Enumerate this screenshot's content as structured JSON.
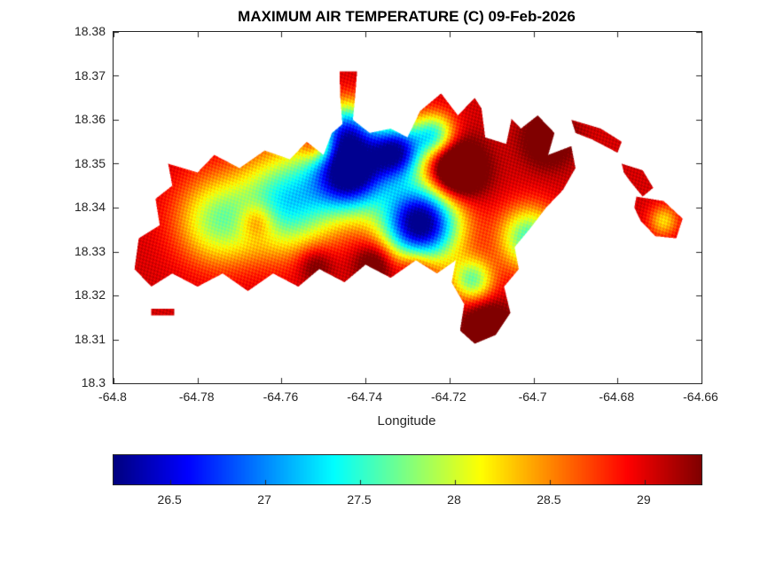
{
  "chart_data": {
    "type": "heatmap",
    "title": "MAXIMUM AIR TEMPERATURE (C) 09-Feb-2026",
    "xlabel": "Longitude",
    "ylabel": "",
    "xlim": [
      -64.8,
      -64.66
    ],
    "ylim": [
      18.3,
      18.38
    ],
    "x_ticks": [
      -64.8,
      -64.78,
      -64.76,
      -64.74,
      -64.72,
      -64.7,
      -64.68,
      -64.66
    ],
    "x_tick_labels": [
      "-64.8",
      "-64.78",
      "-64.76",
      "-64.74",
      "-64.72",
      "-64.7",
      "-64.68",
      "-64.66"
    ],
    "y_ticks": [
      18.3,
      18.31,
      18.32,
      18.33,
      18.34,
      18.35,
      18.36,
      18.37,
      18.38
    ],
    "y_tick_labels": [
      "18.3",
      "18.31",
      "18.32",
      "18.33",
      "18.34",
      "18.35",
      "18.36",
      "18.37",
      "18.38"
    ],
    "grid": false,
    "colormap": "jet",
    "value_range": [
      26.2,
      29.3
    ],
    "colorbar": {
      "orientation": "horizontal",
      "ticks": [
        26.5,
        27,
        27.5,
        28,
        28.5,
        29
      ],
      "tick_labels": [
        "26.5",
        "27",
        "27.5",
        "28",
        "28.5",
        "29"
      ]
    },
    "island": {
      "land": [
        [
          [
            -64.795,
            18.326
          ],
          [
            -64.794,
            18.333
          ],
          [
            -64.789,
            18.336
          ],
          [
            -64.79,
            18.342
          ],
          [
            -64.786,
            18.345
          ],
          [
            -64.787,
            18.35
          ],
          [
            -64.78,
            18.348
          ],
          [
            -64.776,
            18.352
          ],
          [
            -64.77,
            18.349
          ],
          [
            -64.764,
            18.353
          ],
          [
            -64.758,
            18.351
          ],
          [
            -64.754,
            18.355
          ],
          [
            -64.75,
            18.352
          ],
          [
            -64.748,
            18.357
          ],
          [
            -64.7455,
            18.359
          ],
          [
            -64.746,
            18.365
          ],
          [
            -64.7462,
            18.371
          ],
          [
            -64.742,
            18.371
          ],
          [
            -64.7425,
            18.365
          ],
          [
            -64.743,
            18.36
          ],
          [
            -64.739,
            18.357
          ],
          [
            -64.734,
            18.358
          ],
          [
            -64.73,
            18.356
          ],
          [
            -64.727,
            18.362
          ],
          [
            -64.722,
            18.366
          ],
          [
            -64.718,
            18.361
          ],
          [
            -64.714,
            18.365
          ],
          [
            -64.71,
            18.359
          ],
          [
            -64.706,
            18.361
          ],
          [
            -64.703,
            18.358
          ],
          [
            -64.699,
            18.361
          ],
          [
            -64.695,
            18.357
          ],
          [
            -64.6965,
            18.352
          ],
          [
            -64.691,
            18.354
          ],
          [
            -64.69,
            18.349
          ],
          [
            -64.693,
            18.344
          ],
          [
            -64.697,
            18.34
          ],
          [
            -64.701,
            18.335
          ],
          [
            -64.7045,
            18.331
          ],
          [
            -64.7035,
            18.326
          ],
          [
            -64.707,
            18.322
          ],
          [
            -64.7055,
            18.316
          ],
          [
            -64.709,
            18.311
          ],
          [
            -64.714,
            18.309
          ],
          [
            -64.7175,
            18.312
          ],
          [
            -64.7165,
            18.318
          ],
          [
            -64.7195,
            18.323
          ],
          [
            -64.7185,
            18.328
          ],
          [
            -64.723,
            18.325
          ],
          [
            -64.728,
            18.328
          ],
          [
            -64.734,
            18.324
          ],
          [
            -64.74,
            18.327
          ],
          [
            -64.745,
            18.323
          ],
          [
            -64.751,
            18.326
          ],
          [
            -64.756,
            18.322
          ],
          [
            -64.762,
            18.325
          ],
          [
            -64.768,
            18.321
          ],
          [
            -64.774,
            18.325
          ],
          [
            -64.78,
            18.322
          ],
          [
            -64.786,
            18.325
          ],
          [
            -64.791,
            18.322
          ]
        ],
        [
          [
            -64.691,
            18.36
          ],
          [
            -64.684,
            18.358
          ],
          [
            -64.679,
            18.355
          ],
          [
            -64.68,
            18.3525
          ],
          [
            -64.686,
            18.3555
          ],
          [
            -64.69,
            18.357
          ]
        ],
        [
          [
            -64.679,
            18.35
          ],
          [
            -64.674,
            18.3485
          ],
          [
            -64.6715,
            18.3445
          ],
          [
            -64.674,
            18.3425
          ],
          [
            -64.677,
            18.346
          ],
          [
            -64.6785,
            18.348
          ]
        ],
        [
          [
            -64.6755,
            18.3425
          ],
          [
            -64.669,
            18.3415
          ],
          [
            -64.6645,
            18.3375
          ],
          [
            -64.666,
            18.333
          ],
          [
            -64.671,
            18.3335
          ],
          [
            -64.6745,
            18.337
          ],
          [
            -64.676,
            18.34
          ]
        ],
        [
          [
            -64.791,
            18.317
          ],
          [
            -64.7855,
            18.317
          ],
          [
            -64.7855,
            18.3155
          ],
          [
            -64.791,
            18.3155
          ]
        ]
      ],
      "water_holes": [
        [
          [
            -64.7125,
            18.3635
          ],
          [
            -64.7045,
            18.3635
          ],
          [
            -64.7065,
            18.3545
          ],
          [
            -64.7115,
            18.356
          ]
        ]
      ]
    },
    "field": {
      "coast_temp": 29.05,
      "clamp": [
        26.25,
        29.32
      ],
      "cool_centers": [
        [
          -64.7435,
          18.348,
          0.006,
          2.9
        ],
        [
          -64.727,
          18.3365,
          0.0065,
          3.0
        ],
        [
          -64.7325,
          18.353,
          0.0045,
          2.4
        ],
        [
          -64.758,
          18.3415,
          0.008,
          1.7
        ],
        [
          -64.775,
          18.337,
          0.007,
          1.2
        ],
        [
          -64.7445,
          18.358,
          0.0045,
          1.7
        ],
        [
          -64.7235,
          18.3565,
          0.0035,
          1.5
        ],
        [
          -64.701,
          18.333,
          0.005,
          1.5
        ],
        [
          -64.7145,
          18.3235,
          0.0035,
          1.3
        ],
        [
          -64.669,
          18.337,
          0.0025,
          0.8
        ]
      ],
      "warm_centers": [
        [
          -64.7185,
          18.3485,
          0.0045,
          1.5
        ],
        [
          -64.6965,
          18.3555,
          0.004,
          0.8
        ],
        [
          -64.766,
          18.337,
          0.003,
          0.7
        ],
        [
          -64.752,
          18.327,
          0.003,
          0.5
        ],
        [
          -64.7375,
          18.3275,
          0.0035,
          0.7
        ],
        [
          -64.711,
          18.3125,
          0.004,
          0.9
        ],
        [
          -64.7515,
          18.354,
          0.0025,
          0.7
        ],
        [
          -64.728,
          18.3265,
          0.003,
          0.6
        ]
      ],
      "noise": [
        0.13,
        0.09
      ]
    }
  }
}
